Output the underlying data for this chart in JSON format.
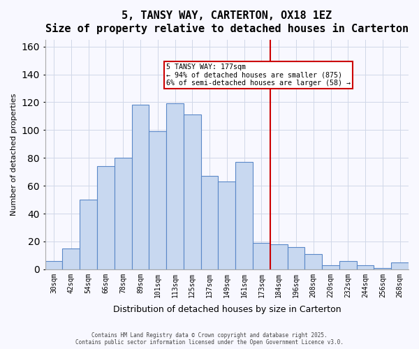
{
  "title": "5, TANSY WAY, CARTERTON, OX18 1EZ",
  "subtitle": "Size of property relative to detached houses in Carterton",
  "xlabel": "Distribution of detached houses by size in Carterton",
  "ylabel": "Number of detached properties",
  "bar_labels": [
    "30sqm",
    "42sqm",
    "54sqm",
    "66sqm",
    "78sqm",
    "89sqm",
    "101sqm",
    "113sqm",
    "125sqm",
    "137sqm",
    "149sqm",
    "161sqm",
    "173sqm",
    "184sqm",
    "196sqm",
    "208sqm",
    "220sqm",
    "232sqm",
    "244sqm",
    "256sqm",
    "268sqm"
  ],
  "bar_values": [
    6,
    15,
    50,
    74,
    80,
    118,
    99,
    119,
    111,
    67,
    63,
    77,
    19,
    18,
    16,
    11,
    3,
    6,
    3,
    1,
    5
  ],
  "bar_color": "#c8d8f0",
  "bar_edge_color": "#5a88c8",
  "vline_x": 12.5,
  "vline_color": "#cc0000",
  "ylim": [
    0,
    165
  ],
  "yticks": [
    0,
    20,
    40,
    60,
    80,
    100,
    120,
    140,
    160
  ],
  "annotation_title": "5 TANSY WAY: 177sqm",
  "annotation_line1": "← 94% of detached houses are smaller (875)",
  "annotation_line2": "6% of semi-detached houses are larger (58) →",
  "annotation_box_color": "#ffffff",
  "annotation_box_edge": "#cc0000",
  "footnote1": "Contains HM Land Registry data © Crown copyright and database right 2025.",
  "footnote2": "Contains public sector information licensed under the Open Government Licence v3.0.",
  "background_color": "#f8f8ff",
  "grid_color": "#d0d8e8"
}
